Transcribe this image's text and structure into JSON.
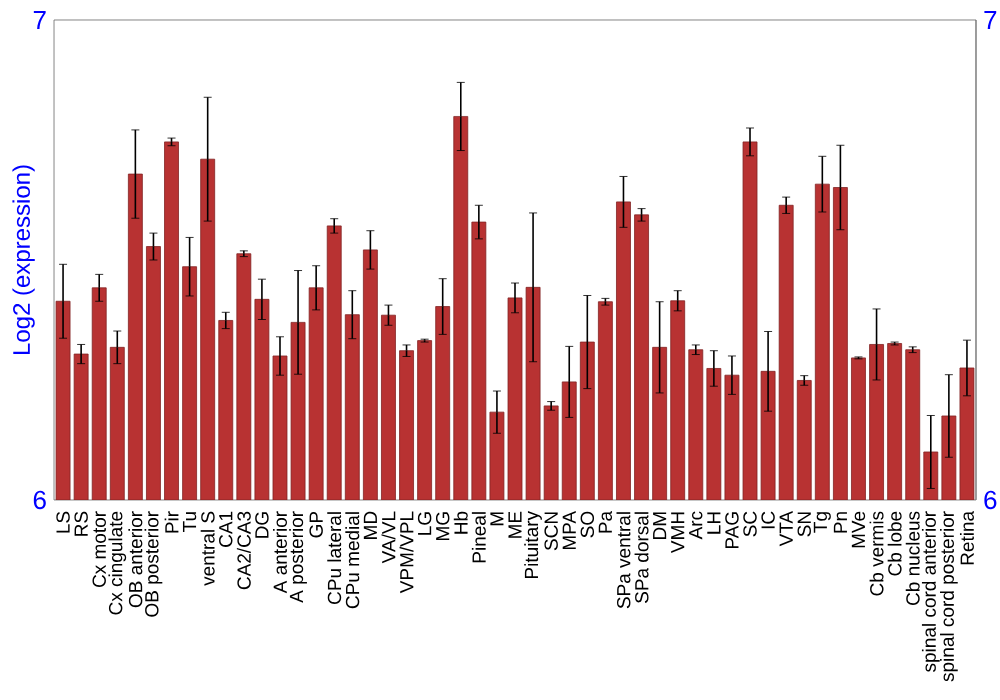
{
  "chart_data": {
    "type": "bar",
    "ylabel": "Log2 (expression)",
    "categories": [
      "LS",
      "RS",
      "Cx motor",
      "Cx cingulate",
      "OB anterior",
      "OB posterior",
      "Pir",
      "Tu",
      "ventral S",
      "CA1",
      "CA2/CA3",
      "DG",
      "A anterior",
      "A posterior",
      "GP",
      "CPu lateral",
      "CPu medial",
      "MD",
      "VA/VL",
      "VPM/VPL",
      "LG",
      "MG",
      "Hb",
      "Pineal",
      "M",
      "ME",
      "Pituitary",
      "SCN",
      "MPA",
      "SO",
      "Pa",
      "SPa ventral",
      "SPa dorsal",
      "DM",
      "VMH",
      "Arc",
      "LH",
      "PAG",
      "SC",
      "IC",
      "VTA",
      "SN",
      "Tg",
      "Pn",
      "MVe",
      "Cb vermis",
      "Cb lobe",
      "Cb nucleus",
      "spinal cord anterior",
      "spinal cord posterior",
      "Retina"
    ],
    "values": [
      6.414,
      6.304,
      6.442,
      6.318,
      6.679,
      6.528,
      6.746,
      6.486,
      6.71,
      6.374,
      6.513,
      6.418,
      6.3,
      6.37,
      6.442,
      6.571,
      6.386,
      6.521,
      6.385,
      6.311,
      6.332,
      6.403,
      6.799,
      6.579,
      6.183,
      6.421,
      6.443,
      6.196,
      6.246,
      6.329,
      6.413,
      6.621,
      6.594,
      6.318,
      6.415,
      6.313,
      6.274,
      6.26,
      6.746,
      6.268,
      6.614,
      6.249,
      6.658,
      6.651,
      6.296,
      6.324,
      6.326,
      6.313,
      6.1,
      6.175,
      6.275
    ],
    "errors": [
      0.077,
      0.02,
      0.028,
      0.034,
      0.092,
      0.028,
      0.008,
      0.061,
      0.129,
      0.017,
      0.006,
      0.042,
      0.04,
      0.108,
      0.046,
      0.015,
      0.05,
      0.04,
      0.021,
      0.012,
      0.003,
      0.058,
      0.071,
      0.035,
      0.044,
      0.031,
      0.155,
      0.009,
      0.074,
      0.097,
      0.007,
      0.053,
      0.013,
      0.095,
      0.021,
      0.01,
      0.037,
      0.04,
      0.029,
      0.083,
      0.017,
      0.01,
      0.058,
      0.088,
      0.002,
      0.074,
      0.003,
      0.006,
      0.076,
      0.086,
      0.058
    ],
    "color": "#b83232",
    "ylim": [
      6,
      7
    ],
    "yticks": [
      6,
      7
    ],
    "y2lim": [
      6,
      7
    ],
    "y2ticks": [
      6,
      7
    ]
  }
}
